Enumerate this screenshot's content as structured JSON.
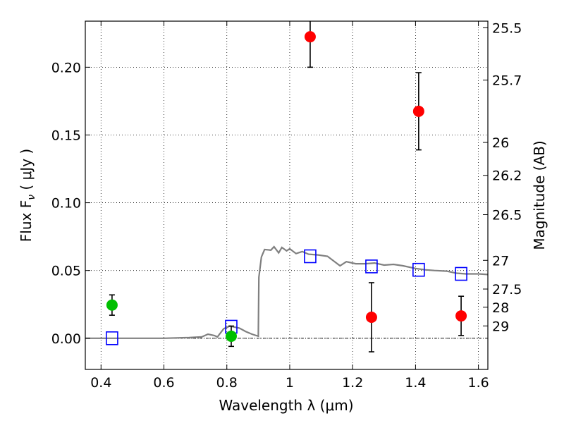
{
  "chart_data": {
    "type": "scatter",
    "xlabel": "Wavelength  λ (μm)",
    "ylabel": "Flux  F",
    "ylabel_sub": "ν",
    "ylabel_unit": " ( μJy )",
    "y2label": "Magnitude (AB)",
    "xlim": [
      0.35,
      1.63
    ],
    "ylim": [
      -0.023,
      0.234
    ],
    "grid": true,
    "x_ticks": [
      0.4,
      0.6,
      0.8,
      1.0,
      1.2,
      1.4,
      1.6
    ],
    "x_tick_labels": [
      "0.4",
      "0.6",
      "0.8",
      "1",
      "1.2",
      "1.4",
      "1.6"
    ],
    "y_ticks": [
      0.0,
      0.05,
      0.1,
      0.15,
      0.2
    ],
    "y_tick_labels": [
      "0.00",
      "0.05",
      "0.10",
      "0.15",
      "0.20"
    ],
    "y2_ticks": [
      {
        "label": "25.5",
        "flux": 0.2291
      },
      {
        "label": "25.7",
        "flux": 0.1905
      },
      {
        "label": "26",
        "flux": 0.1445
      },
      {
        "label": "26.2",
        "flux": 0.1202
      },
      {
        "label": "26.5",
        "flux": 0.0912
      },
      {
        "label": "27",
        "flux": 0.0575
      },
      {
        "label": "27.5",
        "flux": 0.0363
      },
      {
        "label": "28",
        "flux": 0.0229
      },
      {
        "label": "29",
        "flux": 0.0091
      }
    ],
    "zero_line_y": 0.0,
    "colors": {
      "detections": "#ff0000",
      "optical": "#00bf00",
      "model_points": "#0000ff",
      "model_sed": "#808080"
    },
    "series": [
      {
        "kind": "points",
        "color_key": "optical",
        "points": [
          {
            "x": 0.435,
            "y": 0.0245,
            "err": 0.0075
          },
          {
            "x": 0.814,
            "y": 0.0015,
            "err": 0.0075
          }
        ]
      },
      {
        "kind": "points",
        "color_key": "detections",
        "points": [
          {
            "x": 1.065,
            "y": 0.2225,
            "err": 0.0225
          },
          {
            "x": 1.26,
            "y": 0.0155,
            "err": 0.0255
          },
          {
            "x": 1.41,
            "y": 0.1675,
            "err": 0.0285
          },
          {
            "x": 1.545,
            "y": 0.0165,
            "err": 0.0145
          }
        ]
      },
      {
        "kind": "squares",
        "color_key": "model_points",
        "points": [
          {
            "x": 0.435,
            "y": 0.0
          },
          {
            "x": 0.814,
            "y": 0.0085
          },
          {
            "x": 1.065,
            "y": 0.0605
          },
          {
            "x": 1.26,
            "y": 0.053
          },
          {
            "x": 1.41,
            "y": 0.0505
          },
          {
            "x": 1.545,
            "y": 0.0475
          }
        ]
      },
      {
        "kind": "line",
        "color_key": "model_sed",
        "points": [
          {
            "x": 0.35,
            "y": 0.0
          },
          {
            "x": 0.6,
            "y": 0.0
          },
          {
            "x": 0.68,
            "y": 0.0005
          },
          {
            "x": 0.72,
            "y": 0.001
          },
          {
            "x": 0.74,
            "y": 0.003
          },
          {
            "x": 0.76,
            "y": 0.002
          },
          {
            "x": 0.77,
            "y": 0.001
          },
          {
            "x": 0.79,
            "y": 0.007
          },
          {
            "x": 0.81,
            "y": 0.009
          },
          {
            "x": 0.84,
            "y": 0.0075
          },
          {
            "x": 0.86,
            "y": 0.005
          },
          {
            "x": 0.88,
            "y": 0.003
          },
          {
            "x": 0.9,
            "y": 0.0015
          },
          {
            "x": 0.902,
            "y": 0.045
          },
          {
            "x": 0.91,
            "y": 0.06
          },
          {
            "x": 0.92,
            "y": 0.0655
          },
          {
            "x": 0.94,
            "y": 0.065
          },
          {
            "x": 0.95,
            "y": 0.0675
          },
          {
            "x": 0.965,
            "y": 0.063
          },
          {
            "x": 0.975,
            "y": 0.067
          },
          {
            "x": 0.99,
            "y": 0.0645
          },
          {
            "x": 1.0,
            "y": 0.066
          },
          {
            "x": 1.02,
            "y": 0.0625
          },
          {
            "x": 1.04,
            "y": 0.064
          },
          {
            "x": 1.06,
            "y": 0.062
          },
          {
            "x": 1.09,
            "y": 0.0615
          },
          {
            "x": 1.12,
            "y": 0.0605
          },
          {
            "x": 1.14,
            "y": 0.057
          },
          {
            "x": 1.16,
            "y": 0.0535
          },
          {
            "x": 1.18,
            "y": 0.0565
          },
          {
            "x": 1.21,
            "y": 0.055
          },
          {
            "x": 1.24,
            "y": 0.055
          },
          {
            "x": 1.27,
            "y": 0.0555
          },
          {
            "x": 1.3,
            "y": 0.054
          },
          {
            "x": 1.33,
            "y": 0.0545
          },
          {
            "x": 1.36,
            "y": 0.0535
          },
          {
            "x": 1.4,
            "y": 0.0515
          },
          {
            "x": 1.43,
            "y": 0.0505
          },
          {
            "x": 1.46,
            "y": 0.05
          },
          {
            "x": 1.5,
            "y": 0.0495
          },
          {
            "x": 1.53,
            "y": 0.048
          },
          {
            "x": 1.56,
            "y": 0.0475
          },
          {
            "x": 1.6,
            "y": 0.0475
          },
          {
            "x": 1.63,
            "y": 0.047
          }
        ]
      }
    ]
  }
}
